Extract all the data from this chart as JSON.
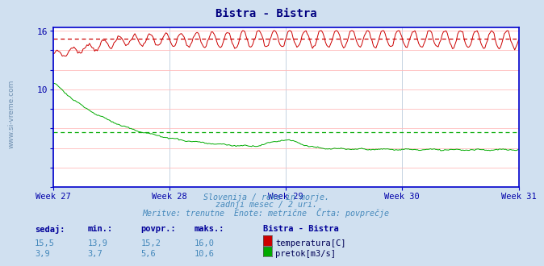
{
  "title": "Bistra - Bistra",
  "title_color": "#000080",
  "bg_color": "#d0e0f0",
  "plot_bg_color": "#ffffff",
  "grid_color_h": "#ffbbbb",
  "grid_color_v": "#bbccdd",
  "x_labels": [
    "Week 27",
    "Week 28",
    "Week 29",
    "Week 30",
    "Week 31"
  ],
  "x_label_color": "#0000aa",
  "y_min": 0,
  "y_max": 16,
  "y_ticks": [
    0,
    2,
    4,
    6,
    8,
    10,
    12,
    14,
    16
  ],
  "y_tick_labels": [
    "",
    "",
    "",
    "",
    "",
    "10",
    "",
    "",
    "16"
  ],
  "y_tick_color": "#0000aa",
  "temp_color": "#cc0000",
  "flow_color": "#00aa00",
  "avg_temp": 15.2,
  "avg_flow": 5.6,
  "temp_min": 13.9,
  "temp_max": 16.0,
  "temp_current": 15.5,
  "flow_min": 3.7,
  "flow_max": 10.6,
  "flow_current": 3.9,
  "n_points": 360,
  "sidebar_text": "www.si-vreme.com",
  "sidebar_color": "#6688aa",
  "border_color": "#0000cc",
  "subtitle1": "Slovenija / reke in morje.",
  "subtitle2": "zadnji mesec / 2 uri.",
  "subtitle3": "Meritve: trenutne  Enote: metrične  Črta: povprečje",
  "subtitle_color": "#4488bb",
  "legend_header_color": "#000099",
  "legend_val_color": "#4488bb",
  "legend_label_color": "#000055"
}
